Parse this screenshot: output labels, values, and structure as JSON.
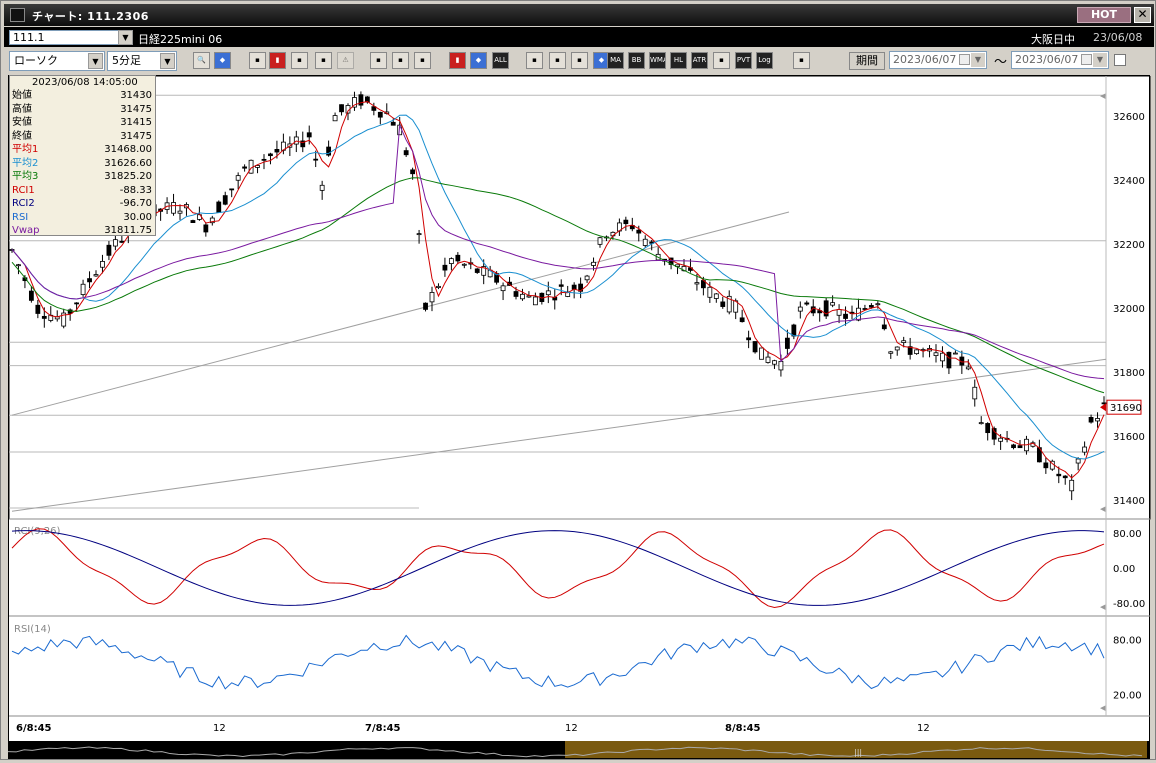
{
  "title": "チャート: 111.2306",
  "hot_label": "HOT",
  "close_label": "✕",
  "symbol_code": "111.1",
  "instrument": "日経225mini 06",
  "market": "大阪日中",
  "market_date": "23/06/08",
  "chart_type": "ローソク",
  "timeframe": "5分足",
  "period_label": "期間",
  "date_from": "2023/06/07",
  "date_to": "2023/06/07",
  "date_sep": "〜",
  "toolbar_icons": [
    "zoom-icon",
    "crosshair-icon",
    "drag-icon",
    "search-chart-icon",
    "grid-icon",
    "compare-icon",
    "warning-icon",
    "draw-line-icon",
    "cursor-icon",
    "undo-icon",
    "candle-icon",
    "dot-candle-icon",
    "all-icon",
    "settings-icon",
    "brush-icon",
    "color-icon",
    "tick-icon",
    "ma-icon",
    "bb-icon",
    "wma-icon",
    "hl-icon",
    "atr-icon",
    "volume-icon",
    "pvt-icon",
    "log-icon",
    "export-icon"
  ],
  "toolbar_labels": {
    "all": "ALL",
    "ma": "MA",
    "bb": "BB",
    "wma": "WMA",
    "hl": "HL",
    "atr": "ATR",
    "pvt": "PVT",
    "log": "Log"
  },
  "info": {
    "datetime": "2023/06/08 14:05:00",
    "rows": [
      {
        "k": "始値",
        "v": "31430",
        "color": "#000000"
      },
      {
        "k": "高値",
        "v": "31475",
        "color": "#000000"
      },
      {
        "k": "安値",
        "v": "31415",
        "color": "#000000"
      },
      {
        "k": "終値",
        "v": "31475",
        "color": "#000000"
      },
      {
        "k": "平均1",
        "v": "31468.00",
        "color": "#d00000"
      },
      {
        "k": "平均2",
        "v": "31626.60",
        "color": "#1a8fd0"
      },
      {
        "k": "平均3",
        "v": "31825.20",
        "color": "#0a7a0a"
      },
      {
        "k": "RCI1",
        "v": "-88.33",
        "color": "#d00000"
      },
      {
        "k": "RCI2",
        "v": "-96.70",
        "color": "#000080"
      },
      {
        "k": "RSI",
        "v": "30.00",
        "color": "#1a6ad0"
      },
      {
        "k": "Vwap",
        "v": "31811.75",
        "color": "#7a1aa0"
      }
    ]
  },
  "price_axis": [
    "32600",
    "32400",
    "32200",
    "32000",
    "31800",
    "31600",
    "31400"
  ],
  "current_price": "31690",
  "rci_label": "RCI(9,26)",
  "rci_axis": [
    "80.00",
    "0.00",
    "-80.00"
  ],
  "rsi_label": "RSI(14)",
  "rsi_axis": [
    "80.00",
    "20.00"
  ],
  "time_axis": [
    "6/8:45",
    "12",
    "7/8:45",
    "12",
    "8/8:45",
    "12"
  ],
  "colors": {
    "candle": "#000000",
    "ma1": "#d00000",
    "ma2": "#1a8fd0",
    "ma3": "#0a7a0a",
    "vwap": "#7a1aa0",
    "rsi": "#1a6ad0",
    "rci2": "#000080",
    "trend": "#a0a0a0"
  }
}
